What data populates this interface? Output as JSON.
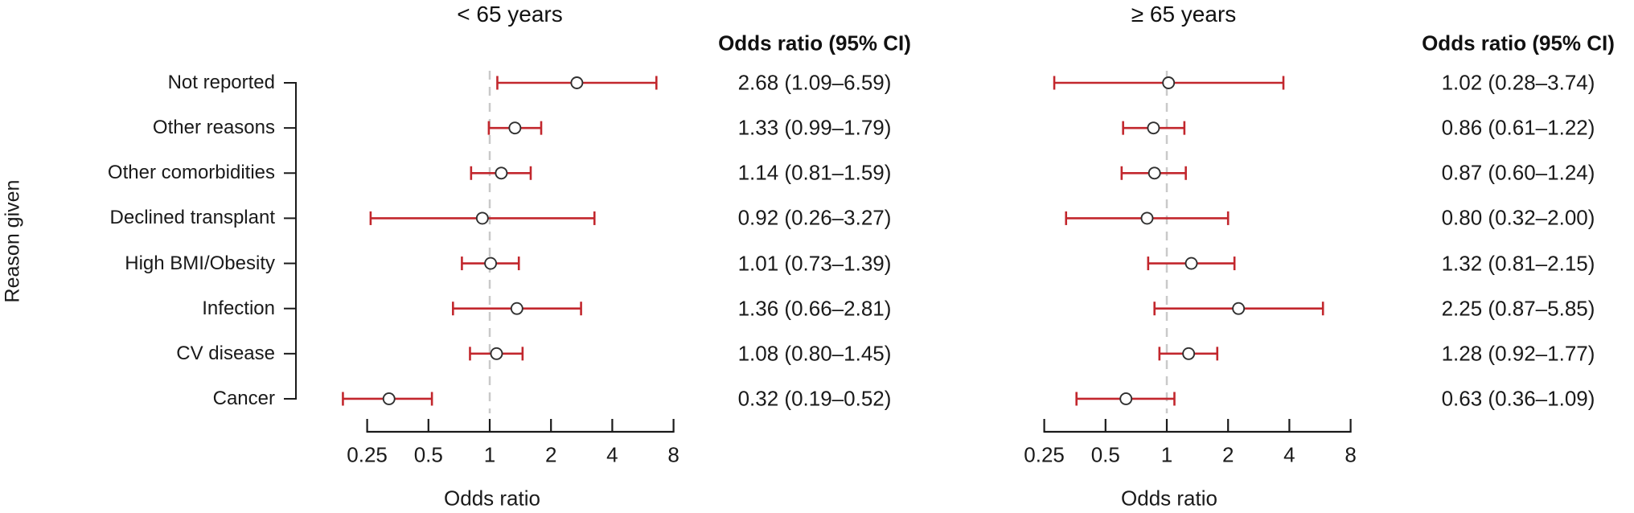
{
  "figure": {
    "y_axis_label": "Reason given",
    "x_axis_label": "Odds ratio",
    "ci_header": "Odds ratio (95% CI)",
    "categories": [
      "Not reported",
      "Other reasons",
      "Other comorbidities",
      "Declined transplant",
      "High BMI/Obesity",
      "Infection",
      "CV disease",
      "Cancer"
    ],
    "x_tick_labels": [
      "0.25",
      "0.5",
      "1",
      "2",
      "4",
      "8"
    ],
    "colors": {
      "ci_bar": "#c2272d",
      "marker_fill": "#ffffff",
      "marker_stroke": "#303030",
      "reference_line": "#c9c9c9",
      "axis": "#1a1a1a",
      "text": "#1a1a1a"
    }
  },
  "chart_data": [
    {
      "type": "scatter",
      "subtype": "forest-plot",
      "title": "< 65 years",
      "xlabel": "Odds ratio",
      "ylabel": "Reason given",
      "ci_column_header": "Odds ratio (95% CI)",
      "x_scale": "log2",
      "xlim": [
        0.25,
        8
      ],
      "x_ticks": [
        0.25,
        0.5,
        1,
        2,
        4,
        8
      ],
      "reference_line_x": 1,
      "categories": [
        "Not reported",
        "Other reasons",
        "Other comorbidities",
        "Declined transplant",
        "High BMI/Obesity",
        "Infection",
        "CV disease",
        "Cancer"
      ],
      "points": [
        {
          "category": "Not reported",
          "or": 2.68,
          "lo": 1.09,
          "hi": 6.59,
          "label": "2.68 (1.09–6.59)"
        },
        {
          "category": "Other reasons",
          "or": 1.33,
          "lo": 0.99,
          "hi": 1.79,
          "label": "1.33 (0.99–1.79)"
        },
        {
          "category": "Other comorbidities",
          "or": 1.14,
          "lo": 0.81,
          "hi": 1.59,
          "label": "1.14 (0.81–1.59)"
        },
        {
          "category": "Declined transplant",
          "or": 0.92,
          "lo": 0.26,
          "hi": 3.27,
          "label": "0.92 (0.26–3.27)"
        },
        {
          "category": "High BMI/Obesity",
          "or": 1.01,
          "lo": 0.73,
          "hi": 1.39,
          "label": "1.01 (0.73–1.39)"
        },
        {
          "category": "Infection",
          "or": 1.36,
          "lo": 0.66,
          "hi": 2.81,
          "label": "1.36 (0.66–2.81)"
        },
        {
          "category": "CV disease",
          "or": 1.08,
          "lo": 0.8,
          "hi": 1.45,
          "label": "1.08 (0.80–1.45)"
        },
        {
          "category": "Cancer",
          "or": 0.32,
          "lo": 0.19,
          "hi": 0.52,
          "label": "0.32 (0.19–0.52)"
        }
      ]
    },
    {
      "type": "scatter",
      "subtype": "forest-plot",
      "title": "≥ 65 years",
      "xlabel": "Odds ratio",
      "ylabel": "Reason given",
      "ci_column_header": "Odds ratio (95% CI)",
      "x_scale": "log2",
      "xlim": [
        0.25,
        8
      ],
      "x_ticks": [
        0.25,
        0.5,
        1,
        2,
        4,
        8
      ],
      "reference_line_x": 1,
      "categories": [
        "Not reported",
        "Other reasons",
        "Other comorbidities",
        "Declined transplant",
        "High BMI/Obesity",
        "Infection",
        "CV disease",
        "Cancer"
      ],
      "points": [
        {
          "category": "Not reported",
          "or": 1.02,
          "lo": 0.28,
          "hi": 3.74,
          "label": "1.02 (0.28–3.74)"
        },
        {
          "category": "Other reasons",
          "or": 0.86,
          "lo": 0.61,
          "hi": 1.22,
          "label": "0.86 (0.61–1.22)"
        },
        {
          "category": "Other comorbidities",
          "or": 0.87,
          "lo": 0.6,
          "hi": 1.24,
          "label": "0.87 (0.60–1.24)"
        },
        {
          "category": "Declined transplant",
          "or": 0.8,
          "lo": 0.32,
          "hi": 2.0,
          "label": "0.80 (0.32–2.00)"
        },
        {
          "category": "High BMI/Obesity",
          "or": 1.32,
          "lo": 0.81,
          "hi": 2.15,
          "label": "1.32 (0.81–2.15)"
        },
        {
          "category": "Infection",
          "or": 2.25,
          "lo": 0.87,
          "hi": 5.85,
          "label": "2.25 (0.87–5.85)"
        },
        {
          "category": "CV disease",
          "or": 1.28,
          "lo": 0.92,
          "hi": 1.77,
          "label": "1.28 (0.92–1.77)"
        },
        {
          "category": "Cancer",
          "or": 0.63,
          "lo": 0.36,
          "hi": 1.09,
          "label": "0.63 (0.36–1.09)"
        }
      ]
    }
  ]
}
